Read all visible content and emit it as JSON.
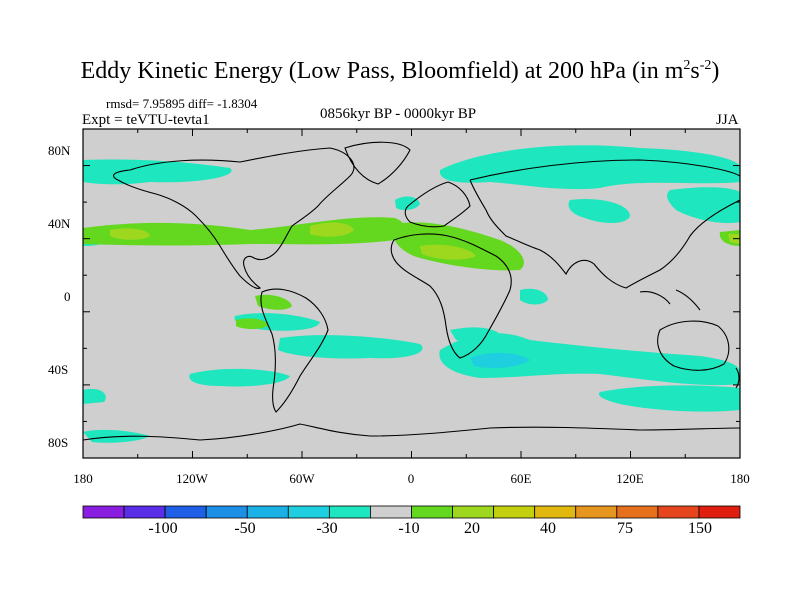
{
  "title": {
    "main": "Eddy Kinetic Energy (Low Pass, Bloomfield) at 200 hPa (in m",
    "exp1": "2",
    "mid": "s",
    "exp2": "-2",
    "close": ")"
  },
  "stats": "rmsd= 7.95895 diff= -1.8304",
  "experiment": "Expt = teVTU-tevta1",
  "period": "0856kyr BP - 0000kyr BP",
  "season": "JJA",
  "lat_labels": [
    "80N",
    "40N",
    "0",
    "40S",
    "80S"
  ],
  "lon_labels": [
    "180",
    "120W",
    "60W",
    "0",
    "60E",
    "120E",
    "180"
  ],
  "colorbar": {
    "labels": [
      "-100",
      "-50",
      "-30",
      "-10",
      "20",
      "40",
      "75",
      "150"
    ],
    "colors": [
      "#8a1ee0",
      "#5a2ee6",
      "#1e5fe6",
      "#1e8fe6",
      "#19b1e6",
      "#1ecfe0",
      "#1ee6be",
      "#cfcfcf",
      "#64d81e",
      "#9ed81e",
      "#c4d00f",
      "#e0b80f",
      "#e6961e",
      "#e6701e",
      "#e6461e",
      "#e01e0f"
    ]
  },
  "map_colors": {
    "background": "#cfcfcf",
    "cyan": "#1ee6be",
    "cyan_dark": "#1ecfe0",
    "green": "#64d81e",
    "yellow_green": "#9ed81e"
  }
}
